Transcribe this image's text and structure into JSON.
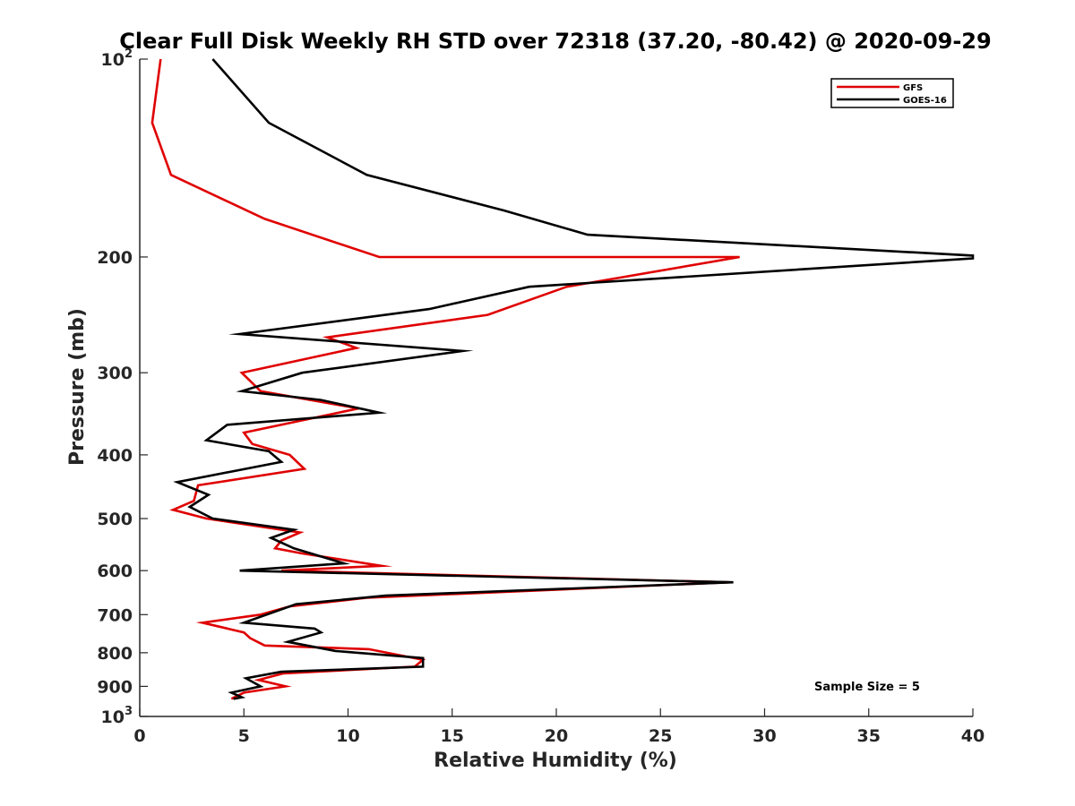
{
  "chart_data": {
    "type": "line",
    "title": "Clear Full Disk Weekly RH STD over 72318 (37.20, -80.42) @ 2020-09-29",
    "xlabel": "Relative Humidity (%)",
    "ylabel": "Pressure (mb)",
    "xlim": [
      0,
      40
    ],
    "ylim": [
      100,
      1000
    ],
    "y_scale": "log",
    "y_reversed": true,
    "grid": false,
    "legend_position": "top-right",
    "x_ticks": [
      "0",
      "5",
      "10",
      "15",
      "20",
      "25",
      "30",
      "35",
      "40"
    ],
    "y_ticks": [
      {
        "value": 100,
        "label": "10",
        "exp": "2"
      },
      {
        "value": 200,
        "label": "200",
        "exp": ""
      },
      {
        "value": 300,
        "label": "300",
        "exp": ""
      },
      {
        "value": 400,
        "label": "400",
        "exp": ""
      },
      {
        "value": 500,
        "label": "500",
        "exp": ""
      },
      {
        "value": 600,
        "label": "600",
        "exp": ""
      },
      {
        "value": 700,
        "label": "700",
        "exp": ""
      },
      {
        "value": 800,
        "label": "800",
        "exp": ""
      },
      {
        "value": 900,
        "label": "900",
        "exp": ""
      },
      {
        "value": 1000,
        "label": "10",
        "exp": "3"
      }
    ],
    "annotation": "Sample Size = 5",
    "series": [
      {
        "name": "GFS",
        "color": "#e00000",
        "points": [
          [
            1.0,
            100
          ],
          [
            0.6,
            125
          ],
          [
            1.5,
            150
          ],
          [
            6.0,
            175
          ],
          [
            11.5,
            200
          ],
          [
            28.8,
            200
          ],
          [
            20.5,
            222
          ],
          [
            16.7,
            245
          ],
          [
            9.0,
            265
          ],
          [
            10.4,
            275
          ],
          [
            4.9,
            300
          ],
          [
            5.8,
            320
          ],
          [
            10.5,
            340
          ],
          [
            5.0,
            370
          ],
          [
            5.4,
            385
          ],
          [
            7.2,
            400
          ],
          [
            7.9,
            420
          ],
          [
            2.8,
            445
          ],
          [
            2.6,
            470
          ],
          [
            1.6,
            485
          ],
          [
            3.2,
            500
          ],
          [
            7.7,
            525
          ],
          [
            6.8,
            540
          ],
          [
            6.5,
            555
          ],
          [
            7.8,
            565
          ],
          [
            11.6,
            590
          ],
          [
            6.8,
            600
          ],
          [
            28.3,
            625
          ],
          [
            10.9,
            660
          ],
          [
            7.2,
            680
          ],
          [
            5.8,
            700
          ],
          [
            3.0,
            720
          ],
          [
            5.0,
            745
          ],
          [
            5.3,
            760
          ],
          [
            6.0,
            780
          ],
          [
            11.0,
            790
          ],
          [
            13.6,
            820
          ],
          [
            13.2,
            840
          ],
          [
            6.9,
            860
          ],
          [
            5.7,
            880
          ],
          [
            7.0,
            900
          ],
          [
            5.0,
            920
          ],
          [
            4.4,
            940
          ]
        ]
      },
      {
        "name": "GOES-16",
        "color": "#000000",
        "points": [
          [
            3.5,
            100
          ],
          [
            6.2,
            125
          ],
          [
            10.9,
            150
          ],
          [
            17.5,
            170
          ],
          [
            21.5,
            185
          ],
          [
            40.0,
            199
          ],
          [
            40.0,
            201
          ],
          [
            18.7,
            222
          ],
          [
            13.9,
            240
          ],
          [
            4.8,
            262
          ],
          [
            15.5,
            278
          ],
          [
            7.8,
            300
          ],
          [
            4.9,
            320
          ],
          [
            8.7,
            330
          ],
          [
            11.5,
            345
          ],
          [
            4.2,
            360
          ],
          [
            3.2,
            380
          ],
          [
            6.2,
            395
          ],
          [
            6.8,
            410
          ],
          [
            1.8,
            440
          ],
          [
            3.3,
            460
          ],
          [
            2.4,
            480
          ],
          [
            3.5,
            500
          ],
          [
            7.4,
            520
          ],
          [
            6.3,
            535
          ],
          [
            7.4,
            555
          ],
          [
            9.8,
            585
          ],
          [
            4.8,
            600
          ],
          [
            28.5,
            625
          ],
          [
            11.8,
            655
          ],
          [
            7.5,
            675
          ],
          [
            5.0,
            720
          ],
          [
            8.4,
            735
          ],
          [
            8.7,
            745
          ],
          [
            7.1,
            770
          ],
          [
            9.4,
            795
          ],
          [
            13.6,
            815
          ],
          [
            13.6,
            840
          ],
          [
            6.8,
            855
          ],
          [
            5.1,
            875
          ],
          [
            5.8,
            900
          ],
          [
            4.4,
            920
          ],
          [
            4.9,
            935
          ],
          [
            4.5,
            940
          ]
        ]
      }
    ]
  }
}
